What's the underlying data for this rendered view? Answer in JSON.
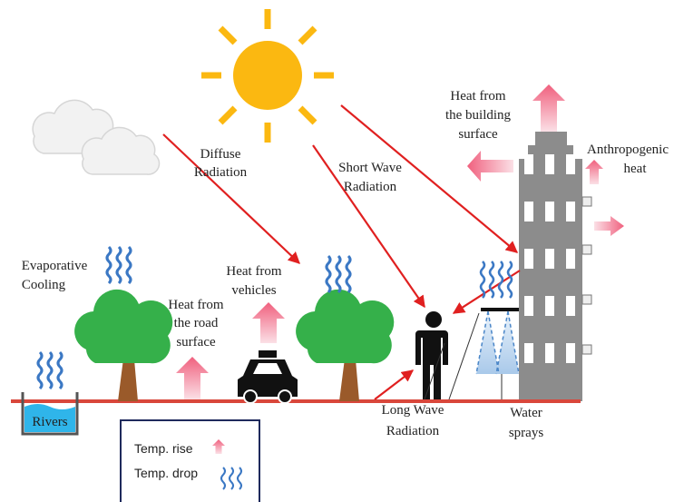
{
  "labels": {
    "diffuse_radiation": [
      "Diffuse",
      "Radiation"
    ],
    "short_wave_radiation": [
      "Short Wave",
      "Radiation"
    ],
    "heat_building": [
      "Heat from",
      "the building",
      "surface"
    ],
    "anthropogenic_heat": [
      "Anthropogenic",
      "heat"
    ],
    "evaporative_cooling": [
      "Evaporative",
      "Cooling"
    ],
    "heat_vehicles": [
      "Heat from",
      "vehicles"
    ],
    "heat_road": [
      "Heat from",
      "the road",
      "surface"
    ],
    "rivers": "Rivers",
    "long_wave_radiation": [
      "Long  Wave",
      "Radiation"
    ],
    "water_sprays": [
      "Water",
      "sprays"
    ]
  },
  "legend": {
    "temp_rise": "Temp. rise",
    "temp_drop": "Temp. drop"
  }
}
